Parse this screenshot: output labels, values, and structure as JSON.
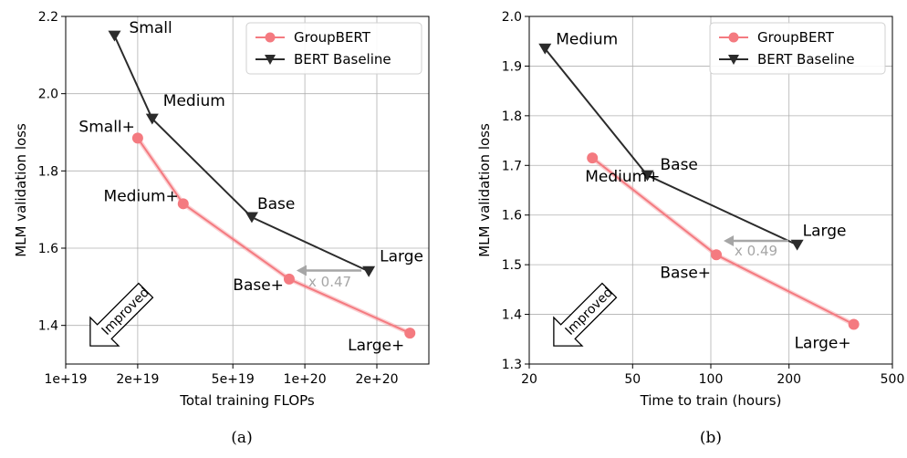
{
  "chart_data": [
    {
      "type": "line",
      "caption": "(a)",
      "xlabel": "Total training FLOPs",
      "ylabel": "MLM validation loss",
      "xscale": "log",
      "xlim": [
        1e+19,
        3.3e+20
      ],
      "ylim": [
        1.3,
        2.2
      ],
      "xticks": [
        {
          "value": 1e+19,
          "label": "1e+19"
        },
        {
          "value": 2e+19,
          "label": "2e+19"
        },
        {
          "value": 5e+19,
          "label": "5e+19"
        },
        {
          "value": 1e+20,
          "label": "1e+20"
        },
        {
          "value": 2e+20,
          "label": "2e+20"
        }
      ],
      "yticks": [
        {
          "value": 1.4,
          "label": "1.4"
        },
        {
          "value": 1.6,
          "label": "1.6"
        },
        {
          "value": 1.8,
          "label": "1.8"
        },
        {
          "value": 2.0,
          "label": "2.0"
        },
        {
          "value": 2.2,
          "label": "2.2"
        }
      ],
      "grid": true,
      "legend": "top-right",
      "series": [
        {
          "name": "GroupBERT",
          "color": "#f47a80",
          "marker": "circle",
          "points": [
            {
              "x": 2e+19,
              "y": 1.885,
              "label": "Small+"
            },
            {
              "x": 3.1e+19,
              "y": 1.715,
              "label": "Medium+"
            },
            {
              "x": 8.6e+19,
              "y": 1.52,
              "label": "Base+"
            },
            {
              "x": 2.75e+20,
              "y": 1.38,
              "label": "Large+"
            }
          ]
        },
        {
          "name": "BERT Baseline",
          "color": "#2b2b2b",
          "marker": "triangle-down",
          "points": [
            {
              "x": 1.6e+19,
              "y": 2.15,
              "label": "Small"
            },
            {
              "x": 2.3e+19,
              "y": 1.935,
              "label": "Medium"
            },
            {
              "x": 6e+19,
              "y": 1.68,
              "label": "Base"
            },
            {
              "x": 1.85e+20,
              "y": 1.54,
              "label": "Large"
            }
          ]
        }
      ],
      "annotations": {
        "speedup": {
          "text": "x 0.47",
          "from_x": 1.85e+20,
          "to_x": 8.6e+19,
          "y": 1.542
        },
        "improved": "Improved"
      }
    },
    {
      "type": "line",
      "caption": "(b)",
      "xlabel": "Time to train (hours)",
      "ylabel": "MLM validation loss",
      "xscale": "log",
      "xlim": [
        20,
        500
      ],
      "ylim": [
        1.3,
        2.0
      ],
      "xticks": [
        {
          "value": 20,
          "label": "20"
        },
        {
          "value": 50,
          "label": "50"
        },
        {
          "value": 100,
          "label": "100"
        },
        {
          "value": 200,
          "label": "200"
        },
        {
          "value": 500,
          "label": "500"
        }
      ],
      "yticks": [
        {
          "value": 1.3,
          "label": "1.3"
        },
        {
          "value": 1.4,
          "label": "1.4"
        },
        {
          "value": 1.5,
          "label": "1.5"
        },
        {
          "value": 1.6,
          "label": "1.6"
        },
        {
          "value": 1.7,
          "label": "1.7"
        },
        {
          "value": 1.8,
          "label": "1.8"
        },
        {
          "value": 1.9,
          "label": "1.9"
        },
        {
          "value": 2.0,
          "label": "2.0"
        }
      ],
      "grid": true,
      "legend": "top-right",
      "series": [
        {
          "name": "GroupBERT",
          "color": "#f47a80",
          "marker": "circle",
          "points": [
            {
              "x": 35,
              "y": 1.715,
              "label": "Medium+"
            },
            {
              "x": 105,
              "y": 1.52,
              "label": "Base+"
            },
            {
              "x": 355,
              "y": 1.38,
              "label": "Large+"
            }
          ]
        },
        {
          "name": "BERT Baseline",
          "color": "#2b2b2b",
          "marker": "triangle-down",
          "points": [
            {
              "x": 23,
              "y": 1.935,
              "label": "Medium"
            },
            {
              "x": 57,
              "y": 1.68,
              "label": "Base"
            },
            {
              "x": 215,
              "y": 1.54,
              "label": "Large"
            }
          ]
        }
      ],
      "annotations": {
        "speedup": {
          "text": "x 0.49",
          "from_x": 212,
          "to_x": 105,
          "y": 1.548
        },
        "improved": "Improved"
      }
    }
  ]
}
